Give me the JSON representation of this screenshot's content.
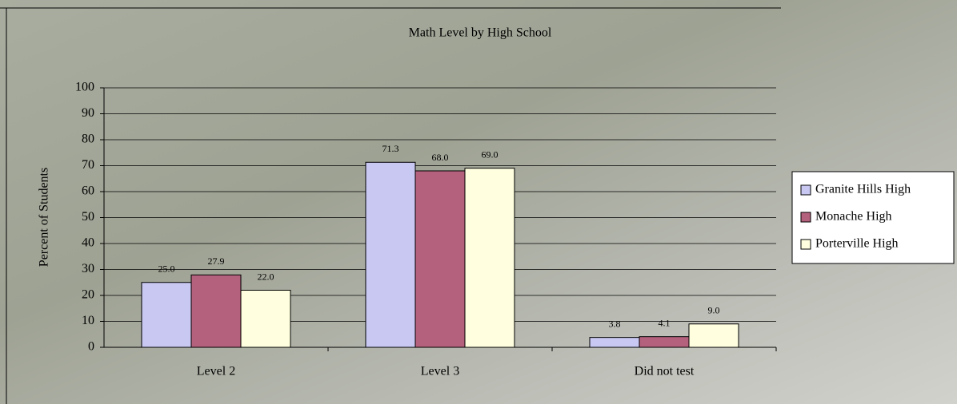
{
  "chart_data": {
    "type": "bar",
    "title": "Math Level by High School",
    "y_label": "Percent of Students",
    "categories": [
      "Level 2",
      "Level 3",
      "Did not test"
    ],
    "series": [
      {
        "name": "Granite Hills High",
        "color": "#c9c8f2",
        "values": [
          25.0,
          71.3,
          3.8
        ],
        "value_labels": [
          "25.0",
          "71.3",
          "3.8"
        ]
      },
      {
        "name": "Monache High",
        "color": "#b3617c",
        "values": [
          27.9,
          68.0,
          4.1
        ],
        "value_labels": [
          "27.9",
          "68.0",
          "4.1"
        ]
      },
      {
        "name": "Porterville High",
        "color": "#ffffe0",
        "values": [
          22.0,
          69.0,
          9.0
        ],
        "value_labels": [
          "22.0",
          "69.0",
          "9.0"
        ]
      }
    ],
    "ylim": [
      0,
      100
    ],
    "yticks": [
      0,
      10,
      20,
      30,
      40,
      50,
      60,
      70,
      80,
      90,
      100
    ],
    "grid": true,
    "legend": "right"
  }
}
